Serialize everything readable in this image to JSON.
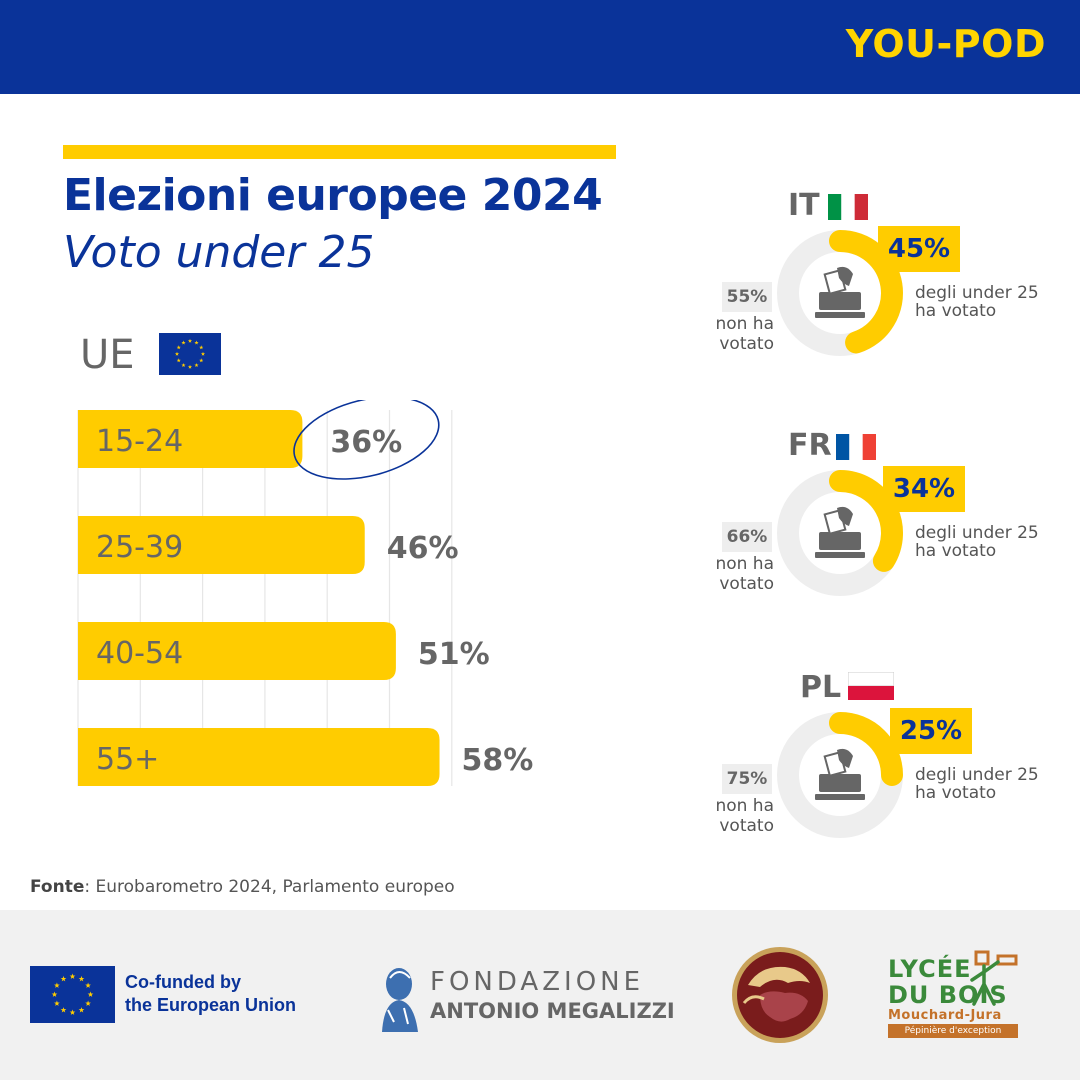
{
  "brand": "YOU-POD",
  "title": {
    "line1": "Elezioni europee 2024",
    "line2": "Voto under 25"
  },
  "eu": {
    "label": "UE"
  },
  "chart_data": [
    {
      "type": "bar",
      "orientation": "horizontal",
      "title": "UE",
      "categories": [
        "15-24",
        "25-39",
        "40-54",
        "55+"
      ],
      "values": [
        36,
        46,
        51,
        58
      ],
      "value_labels": [
        "36%",
        "46%",
        "51%",
        "58%"
      ],
      "unit": "%",
      "xlim": [
        0,
        60
      ],
      "grid": true,
      "highlight": "15-24"
    },
    {
      "type": "pie",
      "title": "IT",
      "categories": [
        "ha votato",
        "non ha votato"
      ],
      "values": [
        45,
        55
      ]
    },
    {
      "type": "pie",
      "title": "FR",
      "categories": [
        "ha votato",
        "non ha votato"
      ],
      "values": [
        34,
        66
      ]
    },
    {
      "type": "pie",
      "title": "PL",
      "categories": [
        "ha votato",
        "non ha votato"
      ],
      "values": [
        25,
        75
      ]
    }
  ],
  "countries": [
    {
      "code": "IT",
      "voted_pct": "45%",
      "voted_label": "degli under 25 ha votato",
      "not_voted_pct": "55%",
      "not_voted_label": "non ha votato",
      "flag_colors": [
        "#009246",
        "#ffffff",
        "#ce2b37"
      ]
    },
    {
      "code": "FR",
      "voted_pct": "34%",
      "voted_label": "degli under 25 ha votato",
      "not_voted_pct": "66%",
      "not_voted_label": "non ha votato",
      "flag_colors": [
        "#0055a4",
        "#ffffff",
        "#ef4135"
      ]
    },
    {
      "code": "PL",
      "voted_pct": "25%",
      "voted_label": "degli under 25 ha votato",
      "not_voted_pct": "75%",
      "not_voted_label": "non ha votato",
      "flag_colors": [
        "#ffffff",
        "#dc143c"
      ]
    }
  ],
  "source": {
    "label": "Fonte",
    "text": ": Eurobarometro 2024, Parlamento europeo"
  },
  "footer": {
    "eu_funding": [
      "Co-funded by",
      "the European Union"
    ],
    "fondazione": [
      "FONDAZIONE",
      "ANTONIO MEGALIZZI"
    ],
    "lycee": [
      "LYCÉE",
      "DU BOIS",
      "Mouchard-Jura",
      "Pépinière d'exception"
    ]
  },
  "colors": {
    "blue": "#0a3399",
    "yellow": "#ffcc00",
    "gray_text": "#666666",
    "ring_gray": "#eeeeee"
  }
}
